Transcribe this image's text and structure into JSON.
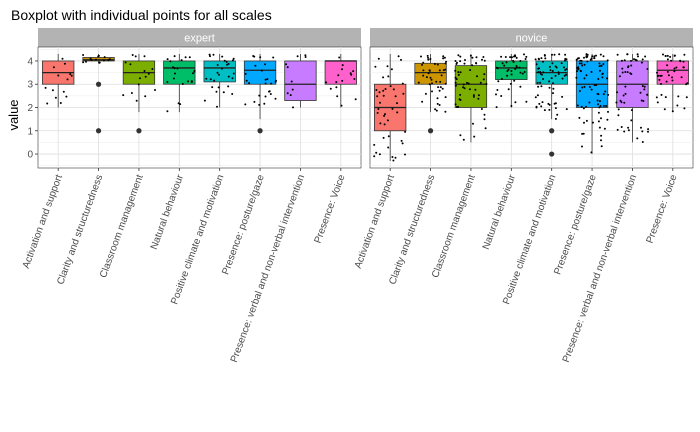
{
  "chart_data": {
    "type": "boxplot",
    "title": "Boxplot with individual points for all scales",
    "ylabel": "value",
    "xlabel": "",
    "ylim": [
      -0.6,
      4.6
    ],
    "yticks": [
      0,
      1,
      2,
      3,
      4
    ],
    "grid": true,
    "categories": [
      "Activation and support",
      "Clarity and structuredness",
      "Classroom management",
      "Natural behaviour",
      "Positive climate and motivation",
      "Presence: posture/gaze",
      "Presence: verbal and non-verbal intervention",
      "Presence: Voice"
    ],
    "colors": [
      "#F8766D",
      "#CD9600",
      "#7CAE00",
      "#00BE67",
      "#00BFC4",
      "#00A9FF",
      "#C77CFF",
      "#FF61CC"
    ],
    "panels": [
      {
        "name": "expert",
        "boxes": [
          {
            "q1": 3.0,
            "median": 3.5,
            "q3": 4.0,
            "lower": 2.0,
            "upper": 4.3,
            "outliers": [],
            "n": 14
          },
          {
            "q1": 4.0,
            "median": 4.05,
            "q3": 4.15,
            "lower": 3.9,
            "upper": 4.3,
            "outliers": [
              1.0,
              3.0
            ],
            "n": 14
          },
          {
            "q1": 3.0,
            "median": 3.5,
            "q3": 4.0,
            "lower": 1.8,
            "upper": 4.3,
            "outliers": [
              1.0
            ],
            "n": 16
          },
          {
            "q1": 3.0,
            "median": 3.7,
            "q3": 4.0,
            "lower": 1.8,
            "upper": 4.3,
            "outliers": [],
            "n": 22
          },
          {
            "q1": 3.1,
            "median": 3.7,
            "q3": 4.0,
            "lower": 2.0,
            "upper": 4.3,
            "outliers": [],
            "n": 28
          },
          {
            "q1": 3.0,
            "median": 3.6,
            "q3": 4.0,
            "lower": 1.5,
            "upper": 4.3,
            "outliers": [
              1.0
            ],
            "n": 26
          },
          {
            "q1": 2.3,
            "median": 3.0,
            "q3": 4.0,
            "lower": 2.0,
            "upper": 4.3,
            "outliers": [],
            "n": 10
          },
          {
            "q1": 3.0,
            "median": 4.0,
            "q3": 4.0,
            "lower": 2.0,
            "upper": 4.3,
            "outliers": [],
            "n": 16
          }
        ]
      },
      {
        "name": "novice",
        "boxes": [
          {
            "q1": 1.0,
            "median": 2.0,
            "q3": 3.0,
            "lower": -0.3,
            "upper": 4.3,
            "outliers": [],
            "n": 44
          },
          {
            "q1": 3.0,
            "median": 3.5,
            "q3": 3.9,
            "lower": 1.8,
            "upper": 4.3,
            "outliers": [
              1.0
            ],
            "n": 46
          },
          {
            "q1": 2.0,
            "median": 3.0,
            "q3": 3.8,
            "lower": 0.5,
            "upper": 4.3,
            "outliers": [],
            "n": 56
          },
          {
            "q1": 3.2,
            "median": 3.7,
            "q3": 4.0,
            "lower": 2.0,
            "upper": 4.3,
            "outliers": [],
            "n": 44
          },
          {
            "q1": 3.0,
            "median": 3.5,
            "q3": 4.0,
            "lower": 1.5,
            "upper": 4.3,
            "outliers": [
              1.0,
              0.0
            ],
            "n": 70
          },
          {
            "q1": 2.0,
            "median": 3.0,
            "q3": 4.0,
            "lower": 0.0,
            "upper": 4.3,
            "outliers": [],
            "n": 90
          },
          {
            "q1": 2.0,
            "median": 3.0,
            "q3": 4.0,
            "lower": 0.5,
            "upper": 4.3,
            "outliers": [],
            "n": 56
          },
          {
            "q1": 3.0,
            "median": 3.6,
            "q3": 4.0,
            "lower": 1.8,
            "upper": 4.3,
            "outliers": [],
            "n": 44
          }
        ]
      }
    ]
  }
}
